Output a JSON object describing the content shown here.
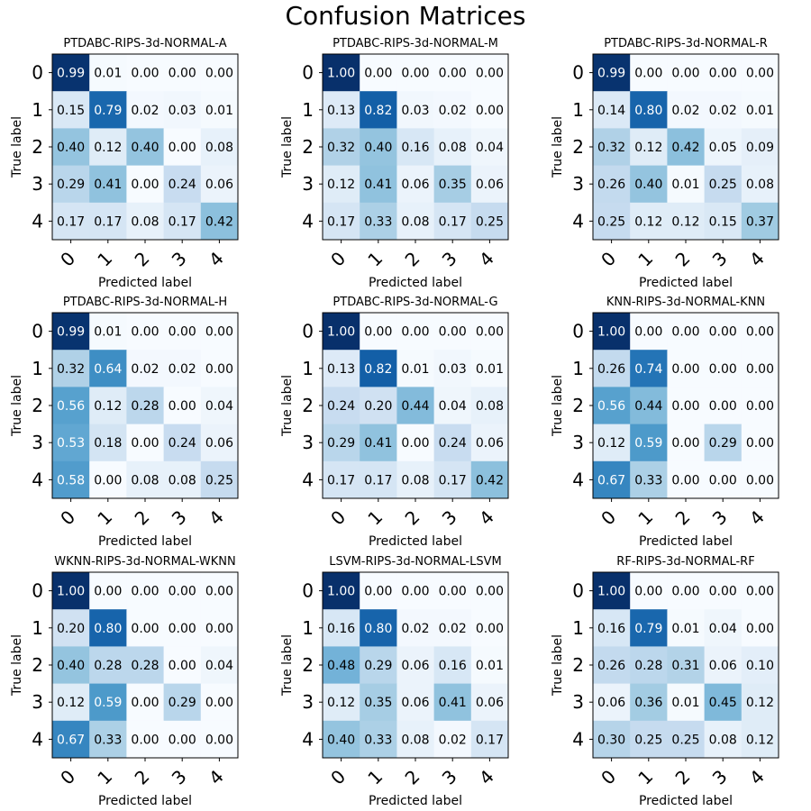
{
  "chart_data": {
    "type": "heatmap",
    "title": "Confusion Matrices",
    "colormap": "Blues",
    "vmin": 0,
    "vmax": 1,
    "row_labels": [
      "0",
      "1",
      "2",
      "3",
      "4"
    ],
    "col_labels": [
      "0",
      "1",
      "2",
      "3",
      "4"
    ],
    "xlabel": "Predicted label",
    "ylabel": "True label",
    "matrices": [
      {
        "title": "PTDABC-RIPS-3d-NORMAL-A",
        "values": [
          [
            0.99,
            0.01,
            0.0,
            0.0,
            0.0
          ],
          [
            0.15,
            0.79,
            0.02,
            0.03,
            0.01
          ],
          [
            0.4,
            0.12,
            0.4,
            0.0,
            0.08
          ],
          [
            0.29,
            0.41,
            0.0,
            0.24,
            0.06
          ],
          [
            0.17,
            0.17,
            0.08,
            0.17,
            0.42
          ]
        ]
      },
      {
        "title": "PTDABC-RIPS-3d-NORMAL-M",
        "values": [
          [
            1.0,
            0.0,
            0.0,
            0.0,
            0.0
          ],
          [
            0.13,
            0.82,
            0.03,
            0.02,
            0.0
          ],
          [
            0.32,
            0.4,
            0.16,
            0.08,
            0.04
          ],
          [
            0.12,
            0.41,
            0.06,
            0.35,
            0.06
          ],
          [
            0.17,
            0.33,
            0.08,
            0.17,
            0.25
          ]
        ]
      },
      {
        "title": "PTDABC-RIPS-3d-NORMAL-R",
        "values": [
          [
            0.99,
            0.0,
            0.0,
            0.0,
            0.0
          ],
          [
            0.14,
            0.8,
            0.02,
            0.02,
            0.01
          ],
          [
            0.32,
            0.12,
            0.42,
            0.05,
            0.09
          ],
          [
            0.26,
            0.4,
            0.01,
            0.25,
            0.08
          ],
          [
            0.25,
            0.12,
            0.12,
            0.15,
            0.37
          ]
        ]
      },
      {
        "title": "PTDABC-RIPS-3d-NORMAL-H",
        "values": [
          [
            0.99,
            0.01,
            0.0,
            0.0,
            0.0
          ],
          [
            0.32,
            0.64,
            0.02,
            0.02,
            0.0
          ],
          [
            0.56,
            0.12,
            0.28,
            0.0,
            0.04
          ],
          [
            0.53,
            0.18,
            0.0,
            0.24,
            0.06
          ],
          [
            0.58,
            0.0,
            0.08,
            0.08,
            0.25
          ]
        ]
      },
      {
        "title": "PTDABC-RIPS-3d-NORMAL-G",
        "values": [
          [
            1.0,
            0.0,
            0.0,
            0.0,
            0.0
          ],
          [
            0.13,
            0.82,
            0.01,
            0.03,
            0.01
          ],
          [
            0.24,
            0.2,
            0.44,
            0.04,
            0.08
          ],
          [
            0.29,
            0.41,
            0.0,
            0.24,
            0.06
          ],
          [
            0.17,
            0.17,
            0.08,
            0.17,
            0.42
          ]
        ]
      },
      {
        "title": "KNN-RIPS-3d-NORMAL-KNN",
        "values": [
          [
            1.0,
            0.0,
            0.0,
            0.0,
            0.0
          ],
          [
            0.26,
            0.74,
            0.0,
            0.0,
            0.0
          ],
          [
            0.56,
            0.44,
            0.0,
            0.0,
            0.0
          ],
          [
            0.12,
            0.59,
            0.0,
            0.29,
            0.0
          ],
          [
            0.67,
            0.33,
            0.0,
            0.0,
            0.0
          ]
        ]
      },
      {
        "title": "WKNN-RIPS-3d-NORMAL-WKNN",
        "values": [
          [
            1.0,
            0.0,
            0.0,
            0.0,
            0.0
          ],
          [
            0.2,
            0.8,
            0.0,
            0.0,
            0.0
          ],
          [
            0.4,
            0.28,
            0.28,
            0.0,
            0.04
          ],
          [
            0.12,
            0.59,
            0.0,
            0.29,
            0.0
          ],
          [
            0.67,
            0.33,
            0.0,
            0.0,
            0.0
          ]
        ]
      },
      {
        "title": "LSVM-RIPS-3d-NORMAL-LSVM",
        "values": [
          [
            1.0,
            0.0,
            0.0,
            0.0,
            0.0
          ],
          [
            0.16,
            0.8,
            0.02,
            0.02,
            0.0
          ],
          [
            0.48,
            0.29,
            0.06,
            0.16,
            0.01
          ],
          [
            0.12,
            0.35,
            0.06,
            0.41,
            0.06
          ],
          [
            0.4,
            0.33,
            0.08,
            0.02,
            0.17
          ]
        ]
      },
      {
        "title": "RF-RIPS-3d-NORMAL-RF",
        "values": [
          [
            1.0,
            0.0,
            0.0,
            0.0,
            0.0
          ],
          [
            0.16,
            0.79,
            0.01,
            0.04,
            0.0
          ],
          [
            0.26,
            0.28,
            0.31,
            0.06,
            0.1
          ],
          [
            0.06,
            0.36,
            0.01,
            0.45,
            0.12
          ],
          [
            0.3,
            0.25,
            0.25,
            0.08,
            0.12
          ]
        ]
      }
    ]
  }
}
